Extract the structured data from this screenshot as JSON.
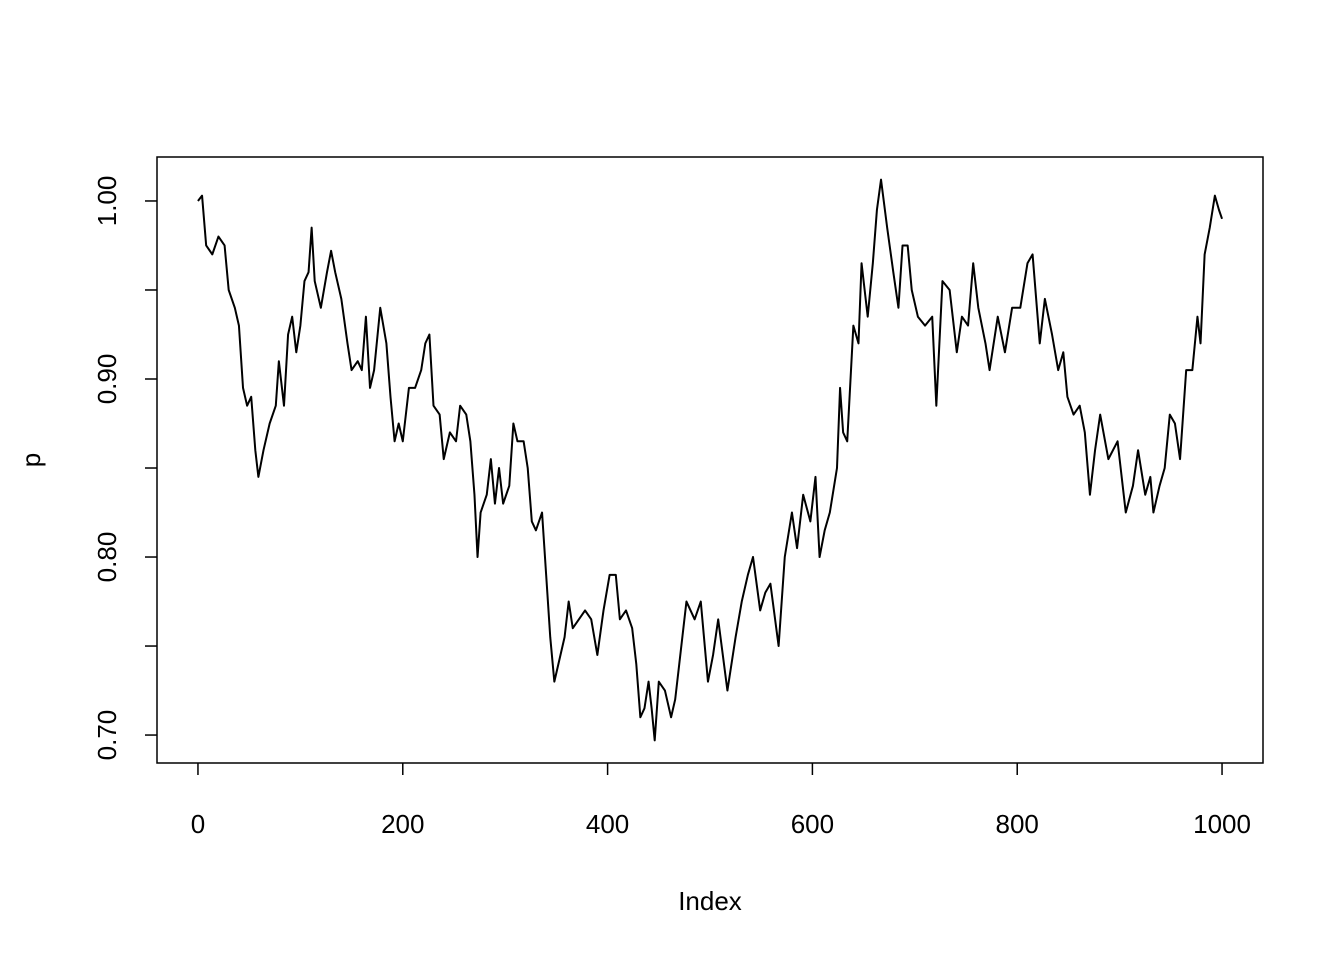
{
  "chart_data": {
    "type": "line",
    "x_label": "Index",
    "y_label": "p",
    "x": [
      0,
      4,
      8,
      14,
      20,
      26,
      30,
      36,
      40,
      44,
      48,
      52,
      56,
      59,
      64,
      70,
      76,
      79,
      84,
      88,
      92,
      96,
      100,
      104,
      108,
      111,
      114,
      120,
      126,
      130,
      134,
      140,
      146,
      150,
      156,
      160,
      164,
      168,
      172,
      178,
      184,
      188,
      192,
      196,
      200,
      206,
      212,
      218,
      222,
      226,
      230,
      236,
      240,
      246,
      252,
      256,
      262,
      266,
      270,
      273,
      276,
      282,
      286,
      290,
      294,
      298,
      304,
      308,
      312,
      318,
      322,
      326,
      330,
      336,
      340,
      344,
      348,
      352,
      358,
      362,
      366,
      372,
      378,
      384,
      390,
      396,
      402,
      408,
      412,
      418,
      424,
      428,
      432,
      436,
      440,
      443,
      446,
      450,
      456,
      462,
      466,
      470,
      477,
      485,
      491,
      498,
      503,
      508,
      517,
      525,
      531,
      537,
      542,
      549,
      554,
      559,
      567,
      573,
      580,
      585,
      591,
      598,
      603,
      607,
      612,
      617,
      624,
      627,
      630,
      634,
      640,
      645,
      648,
      654,
      659,
      663,
      667,
      673,
      679,
      684,
      688,
      693,
      697,
      703,
      710,
      717,
      721,
      727,
      734,
      741,
      746,
      752,
      757,
      762,
      769,
      773,
      781,
      788,
      795,
      803,
      810,
      815,
      822,
      827,
      834,
      840,
      845,
      849,
      855,
      861,
      866,
      871,
      876,
      881,
      889,
      898,
      906,
      913,
      918,
      925,
      930,
      933,
      939,
      944,
      949,
      954,
      959,
      965,
      971,
      976,
      979,
      983,
      988,
      993,
      997,
      1000
    ],
    "values": [
      1.0,
      1.003,
      0.975,
      0.97,
      0.98,
      0.975,
      0.95,
      0.94,
      0.93,
      0.895,
      0.885,
      0.89,
      0.86,
      0.845,
      0.86,
      0.875,
      0.885,
      0.91,
      0.885,
      0.925,
      0.935,
      0.915,
      0.93,
      0.955,
      0.96,
      0.985,
      0.955,
      0.94,
      0.96,
      0.972,
      0.96,
      0.945,
      0.92,
      0.905,
      0.91,
      0.905,
      0.935,
      0.895,
      0.905,
      0.94,
      0.92,
      0.89,
      0.865,
      0.875,
      0.865,
      0.895,
      0.895,
      0.905,
      0.92,
      0.925,
      0.885,
      0.88,
      0.855,
      0.87,
      0.865,
      0.885,
      0.88,
      0.865,
      0.835,
      0.8,
      0.825,
      0.835,
      0.855,
      0.83,
      0.85,
      0.83,
      0.84,
      0.875,
      0.865,
      0.865,
      0.85,
      0.82,
      0.815,
      0.825,
      0.79,
      0.755,
      0.73,
      0.74,
      0.755,
      0.775,
      0.76,
      0.765,
      0.77,
      0.765,
      0.745,
      0.77,
      0.79,
      0.79,
      0.765,
      0.77,
      0.76,
      0.74,
      0.71,
      0.715,
      0.73,
      0.715,
      0.697,
      0.73,
      0.725,
      0.71,
      0.72,
      0.74,
      0.775,
      0.765,
      0.775,
      0.73,
      0.745,
      0.765,
      0.725,
      0.755,
      0.775,
      0.79,
      0.8,
      0.77,
      0.78,
      0.785,
      0.75,
      0.8,
      0.825,
      0.805,
      0.835,
      0.82,
      0.845,
      0.8,
      0.815,
      0.825,
      0.85,
      0.895,
      0.87,
      0.865,
      0.93,
      0.92,
      0.965,
      0.935,
      0.965,
      0.995,
      1.012,
      0.985,
      0.96,
      0.94,
      0.975,
      0.975,
      0.95,
      0.935,
      0.93,
      0.935,
      0.885,
      0.955,
      0.95,
      0.915,
      0.935,
      0.93,
      0.965,
      0.94,
      0.92,
      0.905,
      0.935,
      0.915,
      0.94,
      0.94,
      0.965,
      0.97,
      0.92,
      0.945,
      0.925,
      0.905,
      0.915,
      0.89,
      0.88,
      0.885,
      0.87,
      0.835,
      0.86,
      0.88,
      0.855,
      0.865,
      0.825,
      0.84,
      0.86,
      0.835,
      0.845,
      0.825,
      0.84,
      0.85,
      0.88,
      0.875,
      0.855,
      0.905,
      0.905,
      0.935,
      0.92,
      0.97,
      0.985,
      1.003,
      0.995,
      0.99
    ],
    "color": "#000000",
    "xlim": [
      -40,
      1040
    ],
    "ylim": [
      0.6843,
      1.0247
    ],
    "xticks": [
      0,
      200,
      400,
      600,
      800,
      1000
    ],
    "yticks": [
      {
        "value": 0.7,
        "label": "0.70"
      },
      {
        "value": 0.8,
        "label": "0.80"
      },
      {
        "value": 0.9,
        "label": "0.90"
      },
      {
        "value": 1.0,
        "label": "1.00"
      }
    ],
    "yminor_ticks": [
      0.75,
      0.85,
      0.95
    ]
  }
}
